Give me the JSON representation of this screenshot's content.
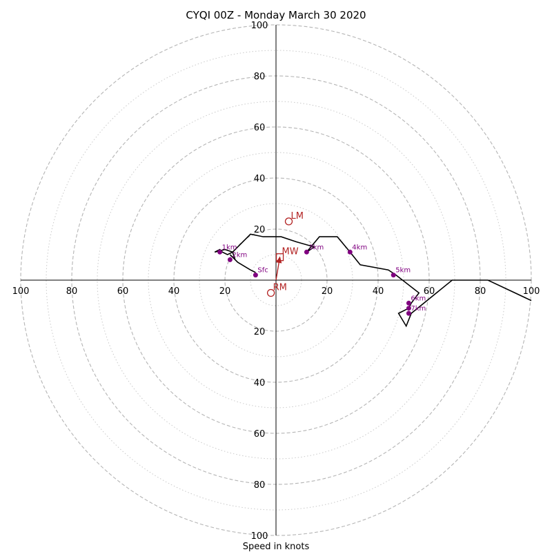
{
  "chart_data": {
    "type": "scatter",
    "title": "CYQI 00Z - Monday March 30 2020",
    "xlabel": "Speed in knots",
    "ylabel": "",
    "xlim": [
      -100,
      100
    ],
    "ylim": [
      -100,
      100
    ],
    "grid": true,
    "legend": "none",
    "ring_labels": [
      "20",
      "40",
      "60",
      "80",
      "100"
    ],
    "ring_values": [
      20,
      40,
      60,
      80,
      100
    ],
    "minor_ring_values": [
      10,
      30,
      50,
      70,
      90
    ],
    "axis_tick_values": [
      20,
      40,
      60,
      80,
      100
    ],
    "hodograph_trace": {
      "x": [
        -8,
        -10,
        -15,
        -18,
        -16,
        -17,
        -20,
        -24,
        -22,
        -21,
        -19,
        -17,
        -12,
        -10,
        -5,
        2,
        8,
        15,
        12,
        17,
        24,
        29,
        33,
        44,
        47,
        56,
        53,
        52,
        48,
        51,
        53,
        69,
        80,
        83,
        100
      ],
      "y": [
        3,
        4,
        7,
        10,
        8,
        11,
        12,
        11,
        12,
        11,
        10,
        11,
        16,
        18,
        17,
        17,
        15,
        13,
        11,
        17,
        17,
        11,
        6,
        4,
        2,
        -5,
        -9,
        -11,
        -13,
        -18,
        -13,
        0,
        0,
        0,
        -8
      ],
      "color": "#000000"
    },
    "height_markers": [
      {
        "label": "Sfc",
        "x": -8,
        "y": 2
      },
      {
        "label": "1km",
        "x": -22,
        "y": 11
      },
      {
        "label": "2km",
        "x": -18,
        "y": 8
      },
      {
        "label": "3km",
        "x": 12,
        "y": 11
      },
      {
        "label": "4km",
        "x": 29,
        "y": 11
      },
      {
        "label": "5km",
        "x": 46,
        "y": 2
      },
      {
        "label": "6km",
        "x": 52,
        "y": -9
      },
      {
        "label": "",
        "x": 52,
        "y": -11
      },
      {
        "label": "7km",
        "x": 52,
        "y": -13
      }
    ],
    "marker_color": "#800080",
    "storm_points": [
      {
        "label": "LM",
        "x": 5,
        "y": 23,
        "shape": "circle"
      },
      {
        "label": "MW",
        "x": 1.5,
        "y": 9,
        "shape": "square"
      },
      {
        "label": "RM",
        "x": -2,
        "y": -5,
        "shape": "circle"
      }
    ],
    "storm_point_color": "#b22222",
    "storm_motion_arrow": {
      "x1": 0,
      "y1": 0,
      "x2": 1.5,
      "y2": 9
    }
  }
}
